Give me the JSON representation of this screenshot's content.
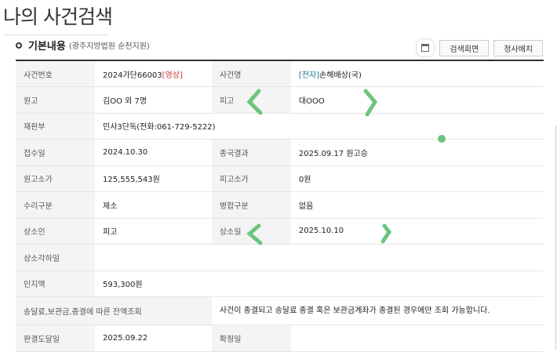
{
  "page_title": "나의 사건검색",
  "section": {
    "title": "기본내용",
    "court": "(광주지방법원 순천지원)"
  },
  "buttons": {
    "print_icon": "print-icon",
    "search_screen": "검색회면",
    "hearing": "청사배치"
  },
  "rows": {
    "case_no_label": "사건번호",
    "case_no": "2024가단66003",
    "case_no_tag": "[영상]",
    "case_name_label": "사건명",
    "case_name_tag": "[전자]",
    "case_name": "손해배상(국)",
    "plaintiff_label": "원고",
    "plaintiff": "김OO 외 7명",
    "defendant_label": "피고",
    "defendant": "대OOO",
    "dept_label": "재판부",
    "dept": "민사3단독(전화:061-729-5222)",
    "filed_label": "접수일",
    "filed": "2024.10.30",
    "result_label": "종국결과",
    "result": "2025.09.17 원고승",
    "p_value_label": "원고소가",
    "p_value": "125,555,543원",
    "d_value_label": "피고소가",
    "d_value": "0원",
    "accept_label": "수리구분",
    "accept": "제소",
    "merge_label": "병합구분",
    "merge": "없음",
    "appellant_label": "상소인",
    "appellant": "피고",
    "appeal_date_label": "상소일",
    "appeal_date": "2025.10.10",
    "appeal_reject_label": "상소각하일",
    "appeal_reject": "",
    "stamp_label": "인지액",
    "stamp": "593,300원",
    "balance_label": "송달료,보관금,종결에 따른 잔액조회",
    "balance": "사건이 종결되고 송달료 종결 혹은 보관금계좌가 종결된 경우에만 조회 가능합니다.",
    "delivered_label": "판결도달일",
    "delivered": "2025.09.22",
    "final_label": "확정일",
    "final": ""
  },
  "colors": {
    "annotation": "#6cc57f",
    "tag_red": "#c0392b",
    "tag_teal": "#1f7a8c"
  }
}
